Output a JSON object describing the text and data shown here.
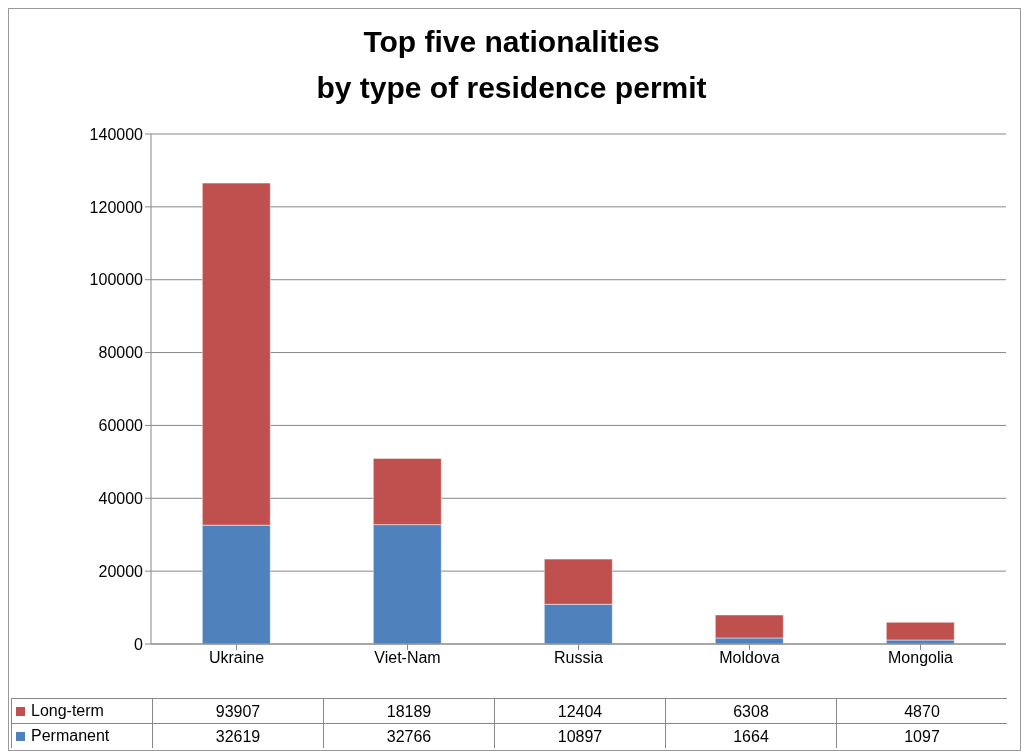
{
  "chart_data": {
    "type": "bar",
    "title": "Top five nationalities\nby type of residence permit",
    "categories": [
      "Ukraine",
      "Viet-Nam",
      "Russia",
      "Moldova",
      "Mongolia"
    ],
    "series": [
      {
        "name": "Permanent",
        "color": "#4f81bd",
        "values": [
          32619,
          32766,
          10897,
          1664,
          1097
        ]
      },
      {
        "name": "Long-term",
        "color": "#c0504d",
        "values": [
          93907,
          18189,
          12404,
          6308,
          4870
        ]
      }
    ],
    "stacked": true,
    "data_labels": true,
    "ylim": [
      0,
      140000
    ],
    "yticks": [
      0,
      20000,
      40000,
      60000,
      80000,
      100000,
      120000,
      140000
    ],
    "grid": "y",
    "legend": "bottom left"
  }
}
